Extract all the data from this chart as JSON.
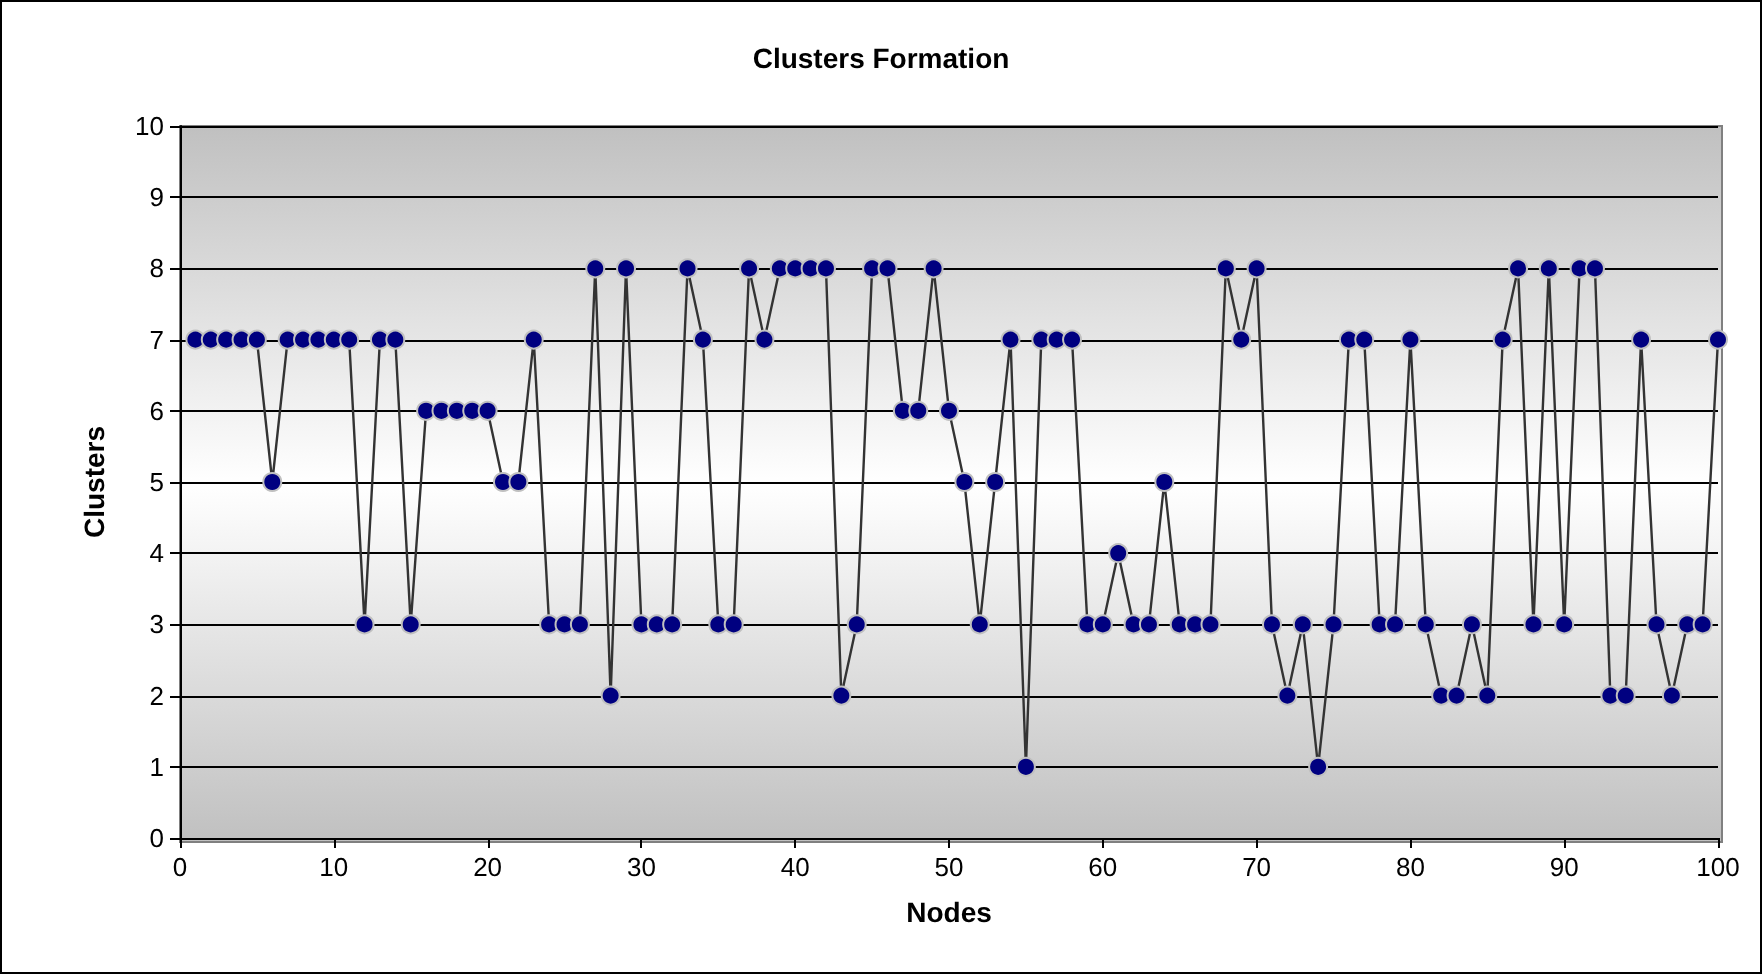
{
  "chart_data": {
    "type": "line",
    "title": "Clusters Formation",
    "xlabel": "Nodes",
    "ylabel": "Clusters",
    "x": [
      1,
      2,
      3,
      4,
      5,
      6,
      7,
      8,
      9,
      10,
      11,
      12,
      13,
      14,
      15,
      16,
      17,
      18,
      19,
      20,
      21,
      22,
      23,
      24,
      25,
      26,
      27,
      28,
      29,
      30,
      31,
      32,
      33,
      34,
      35,
      36,
      37,
      38,
      39,
      40,
      41,
      42,
      43,
      44,
      45,
      46,
      47,
      48,
      49,
      50,
      51,
      52,
      53,
      54,
      55,
      56,
      57,
      58,
      59,
      60,
      61,
      62,
      63,
      64,
      65,
      66,
      67,
      68,
      69,
      70,
      71,
      72,
      73,
      74,
      75,
      76,
      77,
      78,
      79,
      80,
      81,
      82,
      83,
      84,
      85,
      86,
      87,
      88,
      89,
      90,
      91,
      92,
      93,
      94,
      95,
      96,
      97,
      98,
      99,
      100
    ],
    "series": [
      {
        "color": "#000080",
        "values": [
          7,
          7,
          7,
          7,
          7,
          5,
          7,
          7,
          7,
          7,
          7,
          3,
          7,
          7,
          3,
          6,
          6,
          6,
          6,
          6,
          5,
          5,
          7,
          3,
          3,
          3,
          8,
          2,
          8,
          3,
          3,
          3,
          8,
          7,
          3,
          3,
          8,
          7,
          8,
          8,
          8,
          8,
          2,
          3,
          8,
          8,
          6,
          6,
          8,
          6,
          5,
          3,
          5,
          7,
          1,
          7,
          7,
          7,
          3,
          3,
          4,
          3,
          3,
          5,
          3,
          3,
          3,
          8,
          7,
          8,
          3,
          2,
          3,
          1,
          3,
          7,
          7,
          3,
          3,
          7,
          3,
          2,
          2,
          3,
          2,
          7,
          8,
          3,
          8,
          3,
          8,
          8,
          2,
          2,
          7,
          3,
          2,
          3,
          3,
          7
        ]
      }
    ],
    "xlim": [
      0,
      100
    ],
    "xticks": [
      0,
      10,
      20,
      30,
      40,
      50,
      60,
      70,
      80,
      90,
      100
    ],
    "ylim": [
      0,
      10
    ],
    "yticks": [
      0,
      1,
      2,
      3,
      4,
      5,
      6,
      7,
      8,
      9,
      10
    ],
    "grid": "y",
    "marker": "circle",
    "line_style": "solid"
  }
}
